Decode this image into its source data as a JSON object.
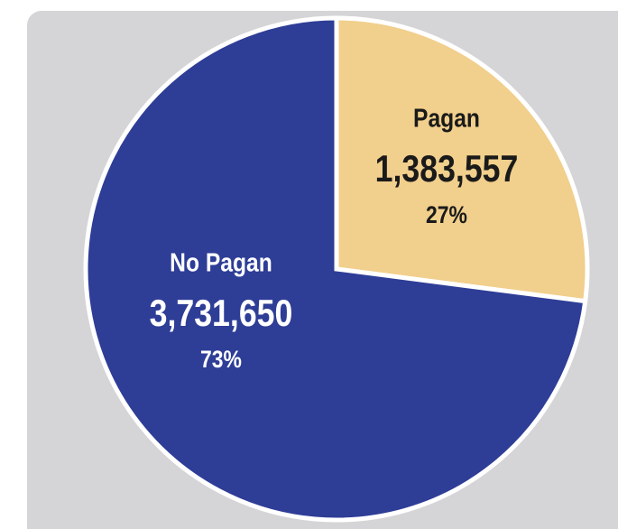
{
  "chart_data": {
    "type": "pie",
    "categories": [
      "Pagan",
      "No Pagan"
    ],
    "values": [
      1383557,
      3731650
    ],
    "value_labels": [
      "1,383,557",
      "3,731,650"
    ],
    "percentages": [
      27,
      73
    ],
    "percentage_labels": [
      "27%",
      "73%"
    ],
    "colors": [
      "#f1cf8c",
      "#2e3d96"
    ],
    "label_colors": [
      "#1a1a1a",
      "#ffffff"
    ]
  }
}
